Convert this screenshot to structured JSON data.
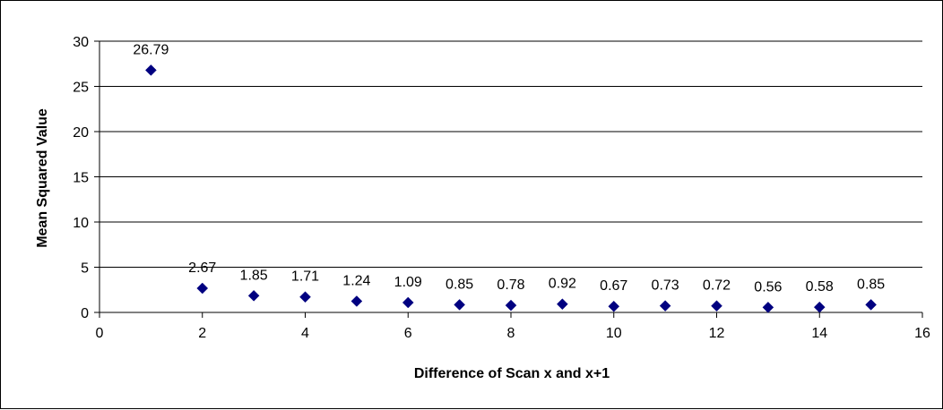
{
  "chart_data": {
    "type": "scatter",
    "title": "",
    "xlabel": "Difference of Scan x and x+1",
    "ylabel": "Mean Squared Value",
    "xlim": [
      0,
      16
    ],
    "ylim": [
      0,
      30
    ],
    "xticks": [
      0,
      2,
      4,
      6,
      8,
      10,
      12,
      14,
      16
    ],
    "yticks": [
      0,
      5,
      10,
      15,
      20,
      25,
      30
    ],
    "grid": "horizontal",
    "legend": "none",
    "marker": "diamond",
    "marker_color": "#000080",
    "series": [
      {
        "x": [
          1,
          2,
          3,
          4,
          5,
          6,
          7,
          8,
          9,
          10,
          11,
          12,
          13,
          14,
          15
        ],
        "y": [
          26.79,
          2.67,
          1.85,
          1.71,
          1.24,
          1.09,
          0.85,
          0.78,
          0.92,
          0.67,
          0.73,
          0.72,
          0.56,
          0.58,
          0.85
        ],
        "labels": [
          "26.79",
          "2.67",
          "1.85",
          "1.71",
          "1.24",
          "1.09",
          "0.85",
          "0.78",
          "0.92",
          "0.67",
          "0.73",
          "0.72",
          "0.56",
          "0.58",
          "0.85"
        ]
      }
    ]
  }
}
